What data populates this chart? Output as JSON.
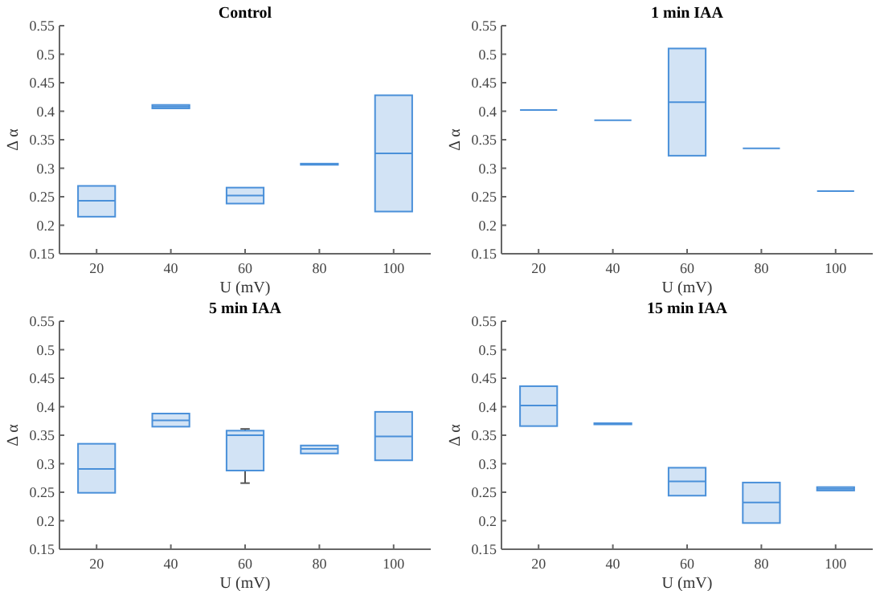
{
  "chart_data": [
    {
      "type": "box",
      "title": "Control",
      "xlabel": "U (mV)",
      "ylabel": "Δ α",
      "categories": [
        "20",
        "40",
        "60",
        "80",
        "100"
      ],
      "color": "#4a90d9",
      "ylim": [
        0.15,
        0.55
      ],
      "yticks": [
        0.15,
        0.2,
        0.25,
        0.3,
        0.35,
        0.4,
        0.45,
        0.5,
        0.55
      ],
      "boxes": [
        {
          "low": 0.215,
          "q1": 0.215,
          "median": 0.243,
          "q3": 0.269,
          "high": 0.269
        },
        {
          "low": 0.405,
          "q1": 0.405,
          "median": 0.408,
          "q3": 0.411,
          "high": 0.411
        },
        {
          "low": 0.238,
          "q1": 0.238,
          "median": 0.252,
          "q3": 0.266,
          "high": 0.266
        },
        {
          "low": 0.306,
          "q1": 0.306,
          "median": 0.307,
          "q3": 0.308,
          "high": 0.308
        },
        {
          "low": 0.224,
          "q1": 0.224,
          "median": 0.326,
          "q3": 0.428,
          "high": 0.428
        }
      ]
    },
    {
      "type": "box",
      "title": "1 min IAA",
      "xlabel": "U (mV)",
      "ylabel": "Δ α",
      "categories": [
        "20",
        "40",
        "60",
        "80",
        "100"
      ],
      "color": "#4a90d9",
      "ylim": [
        0.15,
        0.55
      ],
      "yticks": [
        0.15,
        0.2,
        0.25,
        0.3,
        0.35,
        0.4,
        0.45,
        0.5,
        0.55
      ],
      "boxes": [
        {
          "low": 0.402,
          "q1": 0.402,
          "median": 0.402,
          "q3": 0.402,
          "high": 0.402
        },
        {
          "low": 0.384,
          "q1": 0.384,
          "median": 0.384,
          "q3": 0.384,
          "high": 0.384
        },
        {
          "low": 0.322,
          "q1": 0.322,
          "median": 0.416,
          "q3": 0.51,
          "high": 0.51
        },
        {
          "low": 0.335,
          "q1": 0.335,
          "median": 0.335,
          "q3": 0.335,
          "high": 0.335
        },
        {
          "low": 0.26,
          "q1": 0.26,
          "median": 0.26,
          "q3": 0.26,
          "high": 0.26
        }
      ]
    },
    {
      "type": "box",
      "title": "5 min IAA",
      "xlabel": "U (mV)",
      "ylabel": "Δ α",
      "categories": [
        "20",
        "40",
        "60",
        "80",
        "100"
      ],
      "color": "#4a90d9",
      "ylim": [
        0.15,
        0.55
      ],
      "yticks": [
        0.15,
        0.2,
        0.25,
        0.3,
        0.35,
        0.4,
        0.45,
        0.5,
        0.55
      ],
      "boxes": [
        {
          "low": 0.249,
          "q1": 0.249,
          "median": 0.291,
          "q3": 0.335,
          "high": 0.335
        },
        {
          "low": 0.365,
          "q1": 0.365,
          "median": 0.376,
          "q3": 0.388,
          "high": 0.388
        },
        {
          "low": 0.266,
          "q1": 0.288,
          "median": 0.35,
          "q3": 0.358,
          "high": 0.361
        },
        {
          "low": 0.318,
          "q1": 0.318,
          "median": 0.326,
          "q3": 0.332,
          "high": 0.332
        },
        {
          "low": 0.306,
          "q1": 0.306,
          "median": 0.348,
          "q3": 0.391,
          "high": 0.391
        }
      ]
    },
    {
      "type": "box",
      "title": "15 min IAA",
      "xlabel": "U (mV)",
      "ylabel": "Δ α",
      "categories": [
        "20",
        "40",
        "60",
        "80",
        "100"
      ],
      "color": "#4a90d9",
      "ylim": [
        0.15,
        0.55
      ],
      "yticks": [
        0.15,
        0.2,
        0.25,
        0.3,
        0.35,
        0.4,
        0.45,
        0.5,
        0.55
      ],
      "boxes": [
        {
          "low": 0.366,
          "q1": 0.366,
          "median": 0.402,
          "q3": 0.436,
          "high": 0.436
        },
        {
          "low": 0.369,
          "q1": 0.369,
          "median": 0.37,
          "q3": 0.371,
          "high": 0.371
        },
        {
          "low": 0.244,
          "q1": 0.244,
          "median": 0.269,
          "q3": 0.293,
          "high": 0.293
        },
        {
          "low": 0.196,
          "q1": 0.196,
          "median": 0.232,
          "q3": 0.267,
          "high": 0.267
        },
        {
          "low": 0.253,
          "q1": 0.253,
          "median": 0.256,
          "q3": 0.259,
          "high": 0.259
        }
      ]
    }
  ]
}
